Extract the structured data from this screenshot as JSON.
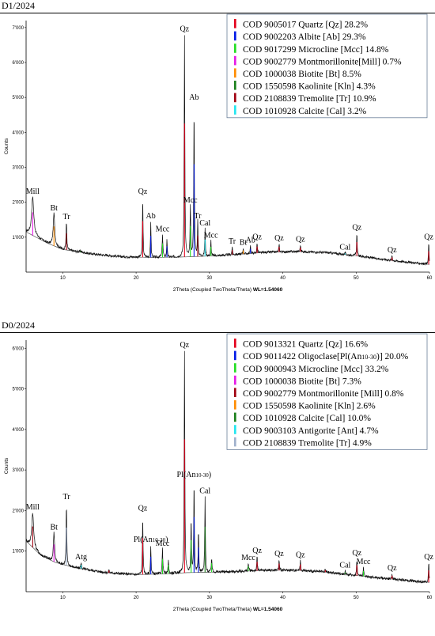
{
  "chart_data": [
    {
      "type": "line",
      "panel_title": "D1/2024",
      "xlabel": "2Theta (Coupled TwoTheta/Theta)",
      "xlabel_suffix": "WL=1.54060",
      "ylabel": "Counts",
      "xlim": [
        5,
        60
      ],
      "ylim": [
        0,
        7200
      ],
      "x_ticks": [
        10,
        20,
        30,
        40,
        50,
        60
      ],
      "y_ticks": [
        1000,
        2000,
        3000,
        4000,
        5000,
        6000,
        7000
      ],
      "y_tick_labels": [
        "1'000",
        "2'000",
        "3'000",
        "4'000",
        "5'000",
        "6'000",
        "7'000"
      ],
      "legend": [
        {
          "label": "COD 9005017 Quartz [Qz] 28.2%",
          "color": "#e3001b"
        },
        {
          "label": "COD 9002203 Albite [Ab] 29.3%",
          "color": "#0019e6"
        },
        {
          "label": "COD 9017299 Microcline [Mcc] 14.8%",
          "color": "#22dd22"
        },
        {
          "label": "COD 9002779 Montmorillonite[Mill] 0.7%",
          "color": "#e619e6"
        },
        {
          "label": "COD 1000038 Biotite [Bt] 8.5%",
          "color": "#ff8c00"
        },
        {
          "label": "COD 1550598 Kaolinite [Kln] 4.3%",
          "color": "#1a7f1a"
        },
        {
          "label": "COD 2108839 Tremolite [Tr] 10.9%",
          "color": "#a0000f"
        },
        {
          "label": "COD 1010928 Calcite [Cal] 3.2%",
          "color": "#22e6f0"
        }
      ],
      "baseline": [
        [
          5,
          1150
        ],
        [
          8,
          820
        ],
        [
          10,
          650
        ],
        [
          14,
          520
        ],
        [
          18,
          440
        ],
        [
          22,
          420
        ],
        [
          26,
          430
        ],
        [
          30,
          460
        ],
        [
          34,
          510
        ],
        [
          38,
          570
        ],
        [
          42,
          590
        ],
        [
          46,
          560
        ],
        [
          50,
          470
        ],
        [
          55,
          330
        ],
        [
          60,
          220
        ]
      ],
      "peaks": [
        {
          "x": 5.9,
          "y": 2150,
          "w": 0.35,
          "label": "Mill",
          "color": "#e619e6"
        },
        {
          "x": 8.8,
          "y": 1680,
          "w": 0.25,
          "label": "Bt",
          "color": "#ff8c00"
        },
        {
          "x": 10.5,
          "y": 1430,
          "w": 0.12,
          "label": "Tr",
          "color": "#a0000f"
        },
        {
          "x": 12.4,
          "y": 620,
          "w": 0.15,
          "label": "",
          "color": "#1a7f1a"
        },
        {
          "x": 20.9,
          "y": 2150,
          "w": 0.1,
          "label": "Qz",
          "color": "#e3001b"
        },
        {
          "x": 22.0,
          "y": 1450,
          "w": 0.1,
          "label": "Ab",
          "color": "#0019e6"
        },
        {
          "x": 23.6,
          "y": 1080,
          "w": 0.12,
          "label": "Mcc",
          "color": "#22dd22"
        },
        {
          "x": 24.2,
          "y": 950,
          "w": 0.1,
          "label": "",
          "color": "#0019e6"
        },
        {
          "x": 26.6,
          "y": 6800,
          "w": 0.1,
          "label": "Qz",
          "color": "#e3001b"
        },
        {
          "x": 27.4,
          "y": 1900,
          "w": 0.1,
          "label": "Mcc",
          "color": "#22dd22"
        },
        {
          "x": 27.9,
          "y": 4850,
          "w": 0.1,
          "label": "Ab",
          "color": "#0019e6"
        },
        {
          "x": 28.4,
          "y": 1450,
          "w": 0.1,
          "label": "Tr",
          "color": "#a0000f"
        },
        {
          "x": 29.4,
          "y": 1250,
          "w": 0.1,
          "label": "Cal",
          "color": "#22e6f0"
        },
        {
          "x": 30.2,
          "y": 900,
          "w": 0.1,
          "label": "Mcc",
          "color": "#22dd22"
        },
        {
          "x": 33.1,
          "y": 720,
          "w": 0.1,
          "label": "Tr",
          "color": "#a0000f"
        },
        {
          "x": 34.6,
          "y": 690,
          "w": 0.1,
          "label": "Bt",
          "color": "#ff8c00"
        },
        {
          "x": 35.6,
          "y": 760,
          "w": 0.1,
          "label": "Ab",
          "color": "#0019e6"
        },
        {
          "x": 36.5,
          "y": 850,
          "w": 0.1,
          "label": "Qz",
          "color": "#e3001b"
        },
        {
          "x": 39.5,
          "y": 820,
          "w": 0.1,
          "label": "Qz",
          "color": "#e3001b"
        },
        {
          "x": 42.4,
          "y": 780,
          "w": 0.1,
          "label": "Qz",
          "color": "#e3001b"
        },
        {
          "x": 45.8,
          "y": 560,
          "w": 0.1,
          "label": "",
          "color": "#e3001b"
        },
        {
          "x": 48.5,
          "y": 560,
          "w": 0.1,
          "label": "Cal",
          "color": "#22e6f0"
        },
        {
          "x": 50.1,
          "y": 1120,
          "w": 0.1,
          "label": "Qz",
          "color": "#e3001b"
        },
        {
          "x": 54.9,
          "y": 480,
          "w": 0.1,
          "label": "Qz",
          "color": "#e3001b"
        },
        {
          "x": 59.9,
          "y": 850,
          "w": 0.1,
          "label": "Qz",
          "color": "#e3001b"
        }
      ]
    },
    {
      "type": "line",
      "panel_title": "D0/2024",
      "xlabel": "2Theta (Coupled TwoTheta/Theta)",
      "xlabel_suffix": "WL=1.54060",
      "ylabel": "Counts",
      "xlim": [
        5,
        60
      ],
      "ylim": [
        0,
        6200
      ],
      "x_ticks": [
        10,
        20,
        30,
        40,
        50,
        60
      ],
      "y_ticks": [
        1000,
        2000,
        3000,
        4000,
        5000,
        6000
      ],
      "y_tick_labels": [
        "1'000",
        "2'000",
        "3'000",
        "4'000",
        "5'000",
        "6'000"
      ],
      "legend": [
        {
          "label": "COD 9013321 Quartz [Qz] 16.6%",
          "color": "#e3001b"
        },
        {
          "label": "COD 9011422 Oligoclase[Pl(An10-30)] 20.0%",
          "color": "#0019e6"
        },
        {
          "label": "COD 9000943 Microcline [Mcc] 33.2%",
          "color": "#22dd22"
        },
        {
          "label": "COD 1000038 Biotite [Bt] 7.3%",
          "color": "#e619e6"
        },
        {
          "label": "COD 9002779 Montmorillonite [Mill] 0.8%",
          "color": "#a0000f"
        },
        {
          "label": "COD 1550598 Kaolinite [Kln] 2.6%",
          "color": "#ff8c00"
        },
        {
          "label": "COD 1010928 Calcite [Cal] 10.0%",
          "color": "#1a7f1a"
        },
        {
          "label": "COD 9003103 Antigorite [Ant] 4.7%",
          "color": "#22e6f0"
        },
        {
          "label": "COD 2108839 Tremolite [Tr] 4.9%",
          "color": "#9fb0cc"
        }
      ],
      "baseline": [
        [
          5,
          1250
        ],
        [
          7,
          900
        ],
        [
          9,
          720
        ],
        [
          12,
          580
        ],
        [
          16,
          470
        ],
        [
          20,
          420
        ],
        [
          24,
          440
        ],
        [
          27,
          470
        ],
        [
          30,
          480
        ],
        [
          34,
          500
        ],
        [
          38,
          530
        ],
        [
          42,
          530
        ],
        [
          46,
          480
        ],
        [
          50,
          400
        ],
        [
          55,
          310
        ],
        [
          60,
          230
        ]
      ],
      "peaks": [
        {
          "x": 5.9,
          "y": 1950,
          "w": 0.3,
          "label": "Mill",
          "color": "#a0000f"
        },
        {
          "x": 8.8,
          "y": 1450,
          "w": 0.2,
          "label": "Bt",
          "color": "#e619e6"
        },
        {
          "x": 10.5,
          "y": 2200,
          "w": 0.1,
          "label": "Tr",
          "color": "#9fb0cc"
        },
        {
          "x": 12.5,
          "y": 720,
          "w": 0.12,
          "label": "Atg",
          "color": "#22e6f0"
        },
        {
          "x": 16.3,
          "y": 560,
          "w": 0.1,
          "label": "",
          "color": "#e3001b"
        },
        {
          "x": 20.9,
          "y": 1920,
          "w": 0.1,
          "label": "Qz",
          "color": "#e3001b"
        },
        {
          "x": 22.0,
          "y": 1150,
          "w": 0.1,
          "label": "Pl(An10-30)",
          "color": "#0019e6"
        },
        {
          "x": 23.6,
          "y": 1050,
          "w": 0.12,
          "label": "Mcc",
          "color": "#22dd22"
        },
        {
          "x": 24.4,
          "y": 800,
          "w": 0.1,
          "label": "",
          "color": "#22dd22"
        },
        {
          "x": 26.6,
          "y": 5950,
          "w": 0.1,
          "label": "Qz",
          "color": "#e3001b"
        },
        {
          "x": 27.5,
          "y": 1800,
          "w": 0.1,
          "label": "",
          "color": "#22dd22"
        },
        {
          "x": 27.9,
          "y": 2750,
          "w": 0.1,
          "label": "Pl(An10-30)",
          "color": "#0019e6"
        },
        {
          "x": 28.5,
          "y": 1500,
          "w": 0.1,
          "label": "",
          "color": "#0019e6"
        },
        {
          "x": 29.4,
          "y": 2350,
          "w": 0.1,
          "label": "Cal",
          "color": "#1a7f1a"
        },
        {
          "x": 30.3,
          "y": 850,
          "w": 0.1,
          "label": "",
          "color": "#22dd22"
        },
        {
          "x": 35.3,
          "y": 700,
          "w": 0.12,
          "label": "Mcc",
          "color": "#22dd22"
        },
        {
          "x": 36.5,
          "y": 880,
          "w": 0.1,
          "label": "Qz",
          "color": "#e3001b"
        },
        {
          "x": 39.5,
          "y": 800,
          "w": 0.1,
          "label": "Qz",
          "color": "#e3001b"
        },
        {
          "x": 42.4,
          "y": 770,
          "w": 0.1,
          "label": "Qz",
          "color": "#e3001b"
        },
        {
          "x": 45.8,
          "y": 560,
          "w": 0.1,
          "label": "",
          "color": "#e3001b"
        },
        {
          "x": 48.5,
          "y": 520,
          "w": 0.1,
          "label": "Cal",
          "color": "#1a7f1a"
        },
        {
          "x": 50.1,
          "y": 820,
          "w": 0.1,
          "label": "Qz",
          "color": "#e3001b"
        },
        {
          "x": 51.0,
          "y": 600,
          "w": 0.1,
          "label": "Mcc",
          "color": "#22dd22"
        },
        {
          "x": 54.9,
          "y": 450,
          "w": 0.1,
          "label": "Qz",
          "color": "#e3001b"
        },
        {
          "x": 59.9,
          "y": 720,
          "w": 0.1,
          "label": "Qz",
          "color": "#e3001b"
        }
      ]
    }
  ]
}
